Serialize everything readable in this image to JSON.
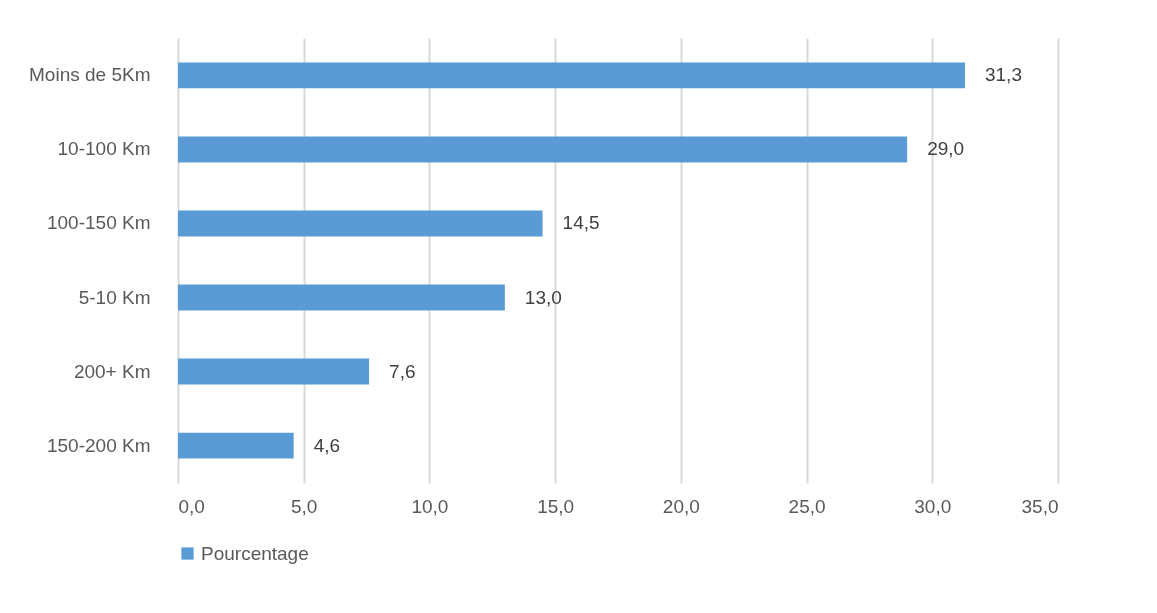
{
  "chart_data": {
    "type": "bar",
    "orientation": "horizontal",
    "categories": [
      "Moins de 5Km",
      "10-100 Km",
      "100-150 Km",
      "5-10 Km",
      "200+ Km",
      "150-200 Km"
    ],
    "series": [
      {
        "name": "Pourcentage",
        "color": "#5b9bd5",
        "values": [
          31.3,
          29.0,
          14.5,
          13.0,
          7.6,
          4.6
        ],
        "value_labels": [
          "31,3",
          "29,0",
          "14,5",
          "13,0",
          "7,6",
          "4,6"
        ]
      }
    ],
    "xlim": [
      0,
      35
    ],
    "xticks": [
      {
        "value": 0,
        "label": "0,0"
      },
      {
        "value": 5,
        "label": "5,0"
      },
      {
        "value": 10,
        "label": "10,0"
      },
      {
        "value": 15,
        "label": "15,0"
      },
      {
        "value": 20,
        "label": "20,0"
      },
      {
        "value": 25,
        "label": "25,0"
      },
      {
        "value": 30,
        "label": "30,0"
      },
      {
        "value": 35,
        "label": "35,0"
      }
    ],
    "grid": "x",
    "legend": "bottom"
  }
}
